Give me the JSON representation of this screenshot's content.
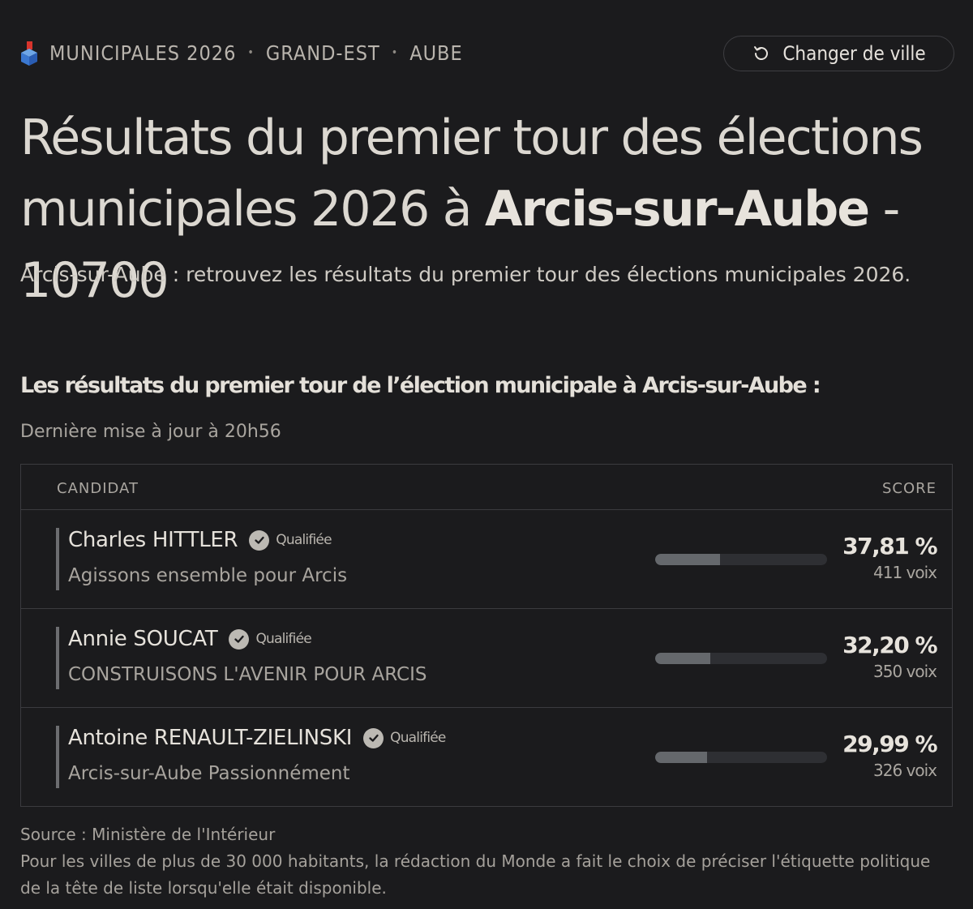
{
  "kicker": {
    "items": [
      "MUNICIPALES 2026",
      "GRAND-EST",
      "AUBE"
    ],
    "separator": "•"
  },
  "change_city_button": {
    "label": "Changer de ville",
    "icon": "refresh-icon"
  },
  "title": {
    "prefix": "Résultats du premier tour des élections municipales 2026 à ",
    "city": "Arcis-sur-Aube",
    "suffix": " - 10700"
  },
  "subtitle": "Arcis-sur-Aube : retrouvez les résultats du premier tour des élections municipales 2026.",
  "section_title": "Les résultats du premier tour de l’élection municipale à Arcis-sur-Aube :",
  "updated": "Dernière mise à jour à 20h56",
  "table": {
    "headers": {
      "candidate": "CANDIDAT",
      "score": "SCORE"
    },
    "rows": [
      {
        "name": "Charles HITTLER",
        "status": "Qualifiée",
        "list": "Agissons ensemble pour Arcis",
        "percent": "37,81 %",
        "votes": "411 voix",
        "share": 0.3781
      },
      {
        "name": "Annie SOUCAT",
        "status": "Qualifiée",
        "list": "CONSTRUISONS L'AVENIR POUR ARCIS",
        "percent": "32,20 %",
        "votes": "350 voix",
        "share": 0.322
      },
      {
        "name": "Antoine RENAULT-ZIELINSKI",
        "status": "Qualifiée",
        "list": "Arcis-sur-Aube Passionnément",
        "percent": "29,99 %",
        "votes": "326 voix",
        "share": 0.2999
      }
    ]
  },
  "footer": {
    "source": "Source : Ministère de l'Intérieur",
    "note": "Pour les villes de plus de 30 000 habitants, la rédaction du Monde a fait le choix de préciser l'étiquette politique de la tête de liste lorsqu'elle était disponible."
  },
  "colors": {
    "background": "#1b1b1d",
    "text": "#d9d5cf",
    "bar_fill": "#65686c",
    "bar_track": "#2e2f33",
    "border": "#3b3b3f"
  }
}
